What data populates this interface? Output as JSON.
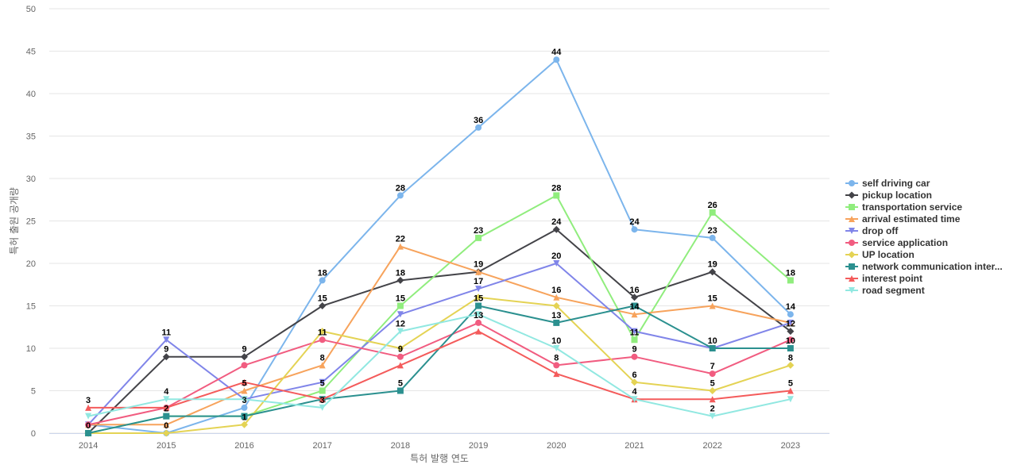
{
  "chart_data": {
    "type": "line",
    "title": "",
    "xlabel": "특허 발행 연도",
    "ylabel": "특허 출원 공개량",
    "x": [
      "2014",
      "2015",
      "2016",
      "2017",
      "2018",
      "2019",
      "2020",
      "2021",
      "2022",
      "2023"
    ],
    "ylim": [
      0,
      50
    ],
    "yticks": [
      0,
      5,
      10,
      15,
      20,
      25,
      30,
      35,
      40,
      45,
      50
    ],
    "grid": true,
    "legend_position": "right",
    "series": [
      {
        "name": "self driving car",
        "color": "#7cb5ec",
        "marker": "circle",
        "values": [
          1,
          0,
          3,
          18,
          28,
          36,
          44,
          24,
          23,
          14
        ]
      },
      {
        "name": "pickup location",
        "color": "#434348",
        "marker": "diamond",
        "values": [
          0,
          9,
          9,
          15,
          18,
          19,
          24,
          16,
          19,
          12
        ]
      },
      {
        "name": "transportation service",
        "color": "#90ed7d",
        "marker": "square",
        "values": [
          0,
          2,
          2,
          5,
          15,
          23,
          28,
          11,
          26,
          18
        ]
      },
      {
        "name": "arrival estimated time",
        "color": "#f7a35c",
        "marker": "triangle",
        "values": [
          1,
          1,
          5,
          8,
          22,
          19,
          16,
          14,
          15,
          13
        ]
      },
      {
        "name": "drop off",
        "color": "#8085e9",
        "marker": "triangle-down",
        "values": [
          1,
          11,
          4,
          6,
          14,
          17,
          20,
          12,
          10,
          13
        ]
      },
      {
        "name": "service application",
        "color": "#f15c80",
        "marker": "circle",
        "values": [
          1,
          3,
          8,
          11,
          9,
          13,
          8,
          9,
          7,
          11
        ]
      },
      {
        "name": "UP location",
        "color": "#e4d354",
        "marker": "diamond",
        "values": [
          0,
          0,
          1,
          12,
          10,
          16,
          15,
          6,
          5,
          8
        ]
      },
      {
        "name": "network communication inter...",
        "color": "#2b908f",
        "marker": "square",
        "values": [
          0,
          2,
          2,
          4,
          5,
          15,
          13,
          15,
          10,
          10
        ]
      },
      {
        "name": "interest point",
        "color": "#f45b5b",
        "marker": "triangle",
        "values": [
          3,
          3,
          6,
          4,
          8,
          12,
          7,
          4,
          4,
          5
        ]
      },
      {
        "name": "road segment",
        "color": "#91e8e1",
        "marker": "triangle-down",
        "values": [
          2,
          4,
          4,
          3,
          12,
          14,
          10,
          4,
          2,
          4
        ]
      }
    ],
    "data_labels": [
      {
        "x": "2014",
        "y": 3,
        "text": "3"
      },
      {
        "x": "2014",
        "y": 0,
        "text": "0"
      },
      {
        "x": "2015",
        "y": 11,
        "text": "11"
      },
      {
        "x": "2015",
        "y": 9,
        "text": "9"
      },
      {
        "x": "2015",
        "y": 4,
        "text": "4"
      },
      {
        "x": "2015",
        "y": 2,
        "text": "2"
      },
      {
        "x": "2015",
        "y": 0,
        "text": "0"
      },
      {
        "x": "2016",
        "y": 9,
        "text": "9"
      },
      {
        "x": "2016",
        "y": 5,
        "text": "5"
      },
      {
        "x": "2016",
        "y": 3,
        "text": "3"
      },
      {
        "x": "2016",
        "y": 1,
        "text": "1"
      },
      {
        "x": "2017",
        "y": 18,
        "text": "18"
      },
      {
        "x": "2017",
        "y": 15,
        "text": "15"
      },
      {
        "x": "2017",
        "y": 11,
        "text": "11"
      },
      {
        "x": "2017",
        "y": 8,
        "text": "8"
      },
      {
        "x": "2017",
        "y": 5,
        "text": "5"
      },
      {
        "x": "2017",
        "y": 3,
        "text": "3"
      },
      {
        "x": "2018",
        "y": 28,
        "text": "28"
      },
      {
        "x": "2018",
        "y": 22,
        "text": "22"
      },
      {
        "x": "2018",
        "y": 18,
        "text": "18"
      },
      {
        "x": "2018",
        "y": 15,
        "text": "15"
      },
      {
        "x": "2018",
        "y": 12,
        "text": "12"
      },
      {
        "x": "2018",
        "y": 9,
        "text": "9"
      },
      {
        "x": "2018",
        "y": 5,
        "text": "5"
      },
      {
        "x": "2019",
        "y": 36,
        "text": "36"
      },
      {
        "x": "2019",
        "y": 23,
        "text": "23"
      },
      {
        "x": "2019",
        "y": 19,
        "text": "19"
      },
      {
        "x": "2019",
        "y": 17,
        "text": "17"
      },
      {
        "x": "2019",
        "y": 15,
        "text": "15"
      },
      {
        "x": "2019",
        "y": 13,
        "text": "13"
      },
      {
        "x": "2020",
        "y": 44,
        "text": "44"
      },
      {
        "x": "2020",
        "y": 28,
        "text": "28"
      },
      {
        "x": "2020",
        "y": 24,
        "text": "24"
      },
      {
        "x": "2020",
        "y": 20,
        "text": "20"
      },
      {
        "x": "2020",
        "y": 16,
        "text": "16"
      },
      {
        "x": "2020",
        "y": 13,
        "text": "13"
      },
      {
        "x": "2020",
        "y": 10,
        "text": "10"
      },
      {
        "x": "2020",
        "y": 8,
        "text": "8"
      },
      {
        "x": "2021",
        "y": 24,
        "text": "24"
      },
      {
        "x": "2021",
        "y": 16,
        "text": "16"
      },
      {
        "x": "2021",
        "y": 14,
        "text": "14"
      },
      {
        "x": "2021",
        "y": 11,
        "text": "11"
      },
      {
        "x": "2021",
        "y": 9,
        "text": "9"
      },
      {
        "x": "2021",
        "y": 6,
        "text": "6"
      },
      {
        "x": "2021",
        "y": 4,
        "text": "4"
      },
      {
        "x": "2022",
        "y": 26,
        "text": "26"
      },
      {
        "x": "2022",
        "y": 23,
        "text": "23"
      },
      {
        "x": "2022",
        "y": 19,
        "text": "19"
      },
      {
        "x": "2022",
        "y": 15,
        "text": "15"
      },
      {
        "x": "2022",
        "y": 10,
        "text": "10"
      },
      {
        "x": "2022",
        "y": 7,
        "text": "7"
      },
      {
        "x": "2022",
        "y": 5,
        "text": "5"
      },
      {
        "x": "2022",
        "y": 2,
        "text": "2"
      },
      {
        "x": "2023",
        "y": 18,
        "text": "18"
      },
      {
        "x": "2023",
        "y": 14,
        "text": "14"
      },
      {
        "x": "2023",
        "y": 12,
        "text": "12"
      },
      {
        "x": "2023",
        "y": 10,
        "text": "10"
      },
      {
        "x": "2023",
        "y": 8,
        "text": "8"
      },
      {
        "x": "2023",
        "y": 5,
        "text": "5"
      }
    ]
  }
}
